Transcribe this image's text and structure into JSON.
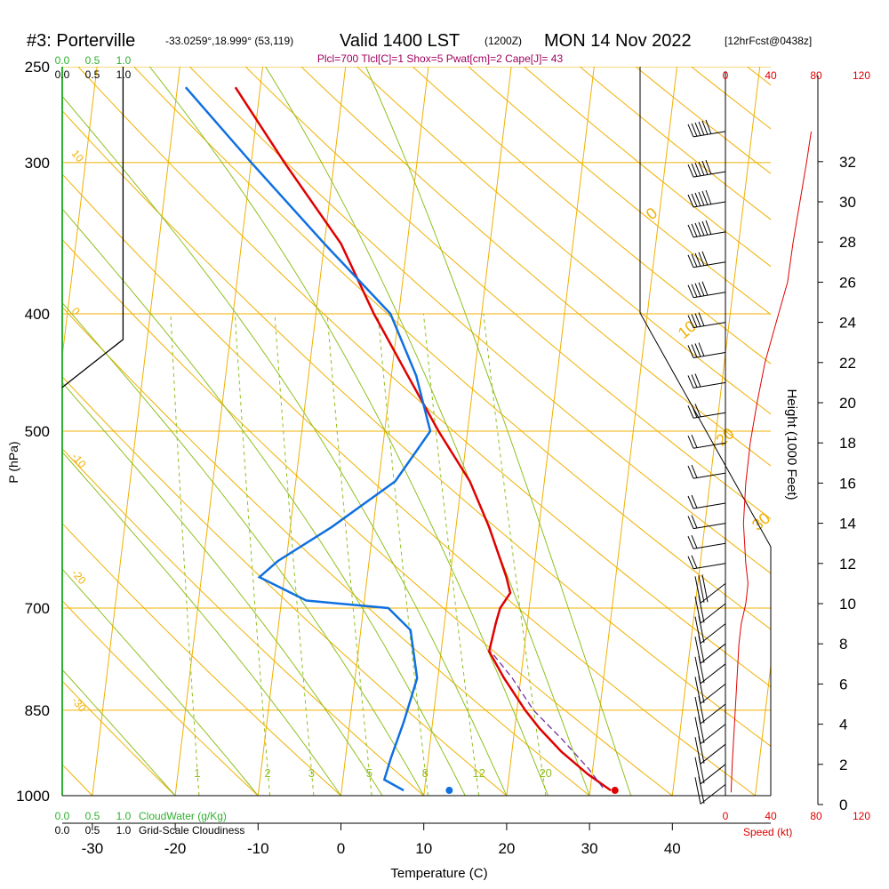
{
  "header": {
    "station": "#3: Porterville",
    "coords": "-33.0259°,18.999° (53,119)",
    "valid": "Valid 1400 LST",
    "utc": "(1200Z)",
    "date": "MON 14 Nov 2022",
    "fcst": "[12hrFcst@0438z]",
    "indices": "Plcl=700 Tlcl[C]=1 Shox=5 Pwat[cm]=2 Cape[J]= 43"
  },
  "labels": {
    "p_axis": "P (hPa)",
    "x_axis": "Temperature (C)",
    "height_axis": "Height (1000 Feet)",
    "cloudwater": "CloudWater (g/Kg)",
    "cloudiness": "Grid-Scale Cloudiness",
    "speed": "Speed (kt)"
  },
  "colors": {
    "isotherm": "#f0b000",
    "dry_adiabat": "#f0b000",
    "moist_adiabat": "#90c020",
    "mixing_ratio": "#90c020",
    "temperature": "#e00000",
    "dewpoint": "#1070e0",
    "parcel": "#7030a0",
    "cloudwater": "#30b030",
    "speed": "#e00000"
  },
  "chart_data": {
    "type": "line",
    "title": "",
    "pressure_ticks": [
      "250",
      "300",
      "400",
      "500",
      "700",
      "850",
      "1000"
    ],
    "pressure_values": [
      250,
      300,
      400,
      500,
      700,
      850,
      1000
    ],
    "temp_ticks": [
      "-30",
      "-20",
      "-10",
      "0",
      "10",
      "20",
      "30",
      "40"
    ],
    "temp_values": [
      -30,
      -20,
      -10,
      0,
      10,
      20,
      30,
      40
    ],
    "xlim": [
      -33,
      46
    ],
    "ylim": [
      1000,
      250
    ],
    "height_ticks": [
      "0",
      "2",
      "4",
      "6",
      "8",
      "10",
      "12",
      "14",
      "16",
      "18",
      "20",
      "22",
      "24",
      "26",
      "28",
      "30",
      "32"
    ],
    "speed_ticks_top": [
      "0",
      "40",
      "80",
      "120"
    ],
    "speed_ticks_bottom": [
      "0",
      "40",
      "80",
      "120"
    ],
    "cloud_ticks_top_green": [
      "0.0",
      "0.5",
      "1.0"
    ],
    "cloud_ticks_top_black": [
      "0.0",
      "0.5",
      "1.0"
    ],
    "cloud_ticks_bottom_green": [
      "0.0",
      "0.5",
      "1.0"
    ],
    "cloud_ticks_bottom_black": [
      "0.0",
      "0.5",
      "1.0"
    ],
    "dry_adiabat_labels": [
      {
        "text": "10",
        "side": "left",
        "p": 295
      },
      {
        "text": "0",
        "side": "left",
        "p": 398
      },
      {
        "text": "-10",
        "side": "left",
        "p": 525
      },
      {
        "text": "-20",
        "side": "left",
        "p": 655
      },
      {
        "text": "-30",
        "side": "left",
        "p": 835
      },
      {
        "text": "0",
        "side": "right",
        "p": 335
      },
      {
        "text": "10",
        "side": "right",
        "p": 420
      },
      {
        "text": "20",
        "side": "right",
        "p": 515
      },
      {
        "text": "30",
        "side": "right",
        "p": 605
      }
    ],
    "mixing_ratio_labels": [
      "1",
      "2",
      "3",
      "5",
      "8",
      "12",
      "20"
    ],
    "mixing_ratio_values": [
      1,
      2,
      3,
      5,
      8,
      12,
      20
    ],
    "temperature_profile": [
      {
        "p": 990,
        "t": 32.5
      },
      {
        "p": 960,
        "t": 29.5
      },
      {
        "p": 920,
        "t": 26
      },
      {
        "p": 880,
        "t": 23
      },
      {
        "p": 850,
        "t": 21
      },
      {
        "p": 800,
        "t": 18
      },
      {
        "p": 760,
        "t": 15.8
      },
      {
        "p": 720,
        "t": 16.2
      },
      {
        "p": 700,
        "t": 16.5
      },
      {
        "p": 680,
        "t": 17.5
      },
      {
        "p": 660,
        "t": 16.8
      },
      {
        "p": 600,
        "t": 14
      },
      {
        "p": 550,
        "t": 11
      },
      {
        "p": 500,
        "t": 6.5
      },
      {
        "p": 450,
        "t": 2
      },
      {
        "p": 400,
        "t": -3
      },
      {
        "p": 350,
        "t": -8
      },
      {
        "p": 300,
        "t": -16
      },
      {
        "p": 260,
        "t": -23
      }
    ],
    "dewpoint_profile": [
      {
        "p": 990,
        "t": 7.5
      },
      {
        "p": 970,
        "t": 5
      },
      {
        "p": 930,
        "t": 5.5
      },
      {
        "p": 870,
        "t": 6.5
      },
      {
        "p": 800,
        "t": 7.5
      },
      {
        "p": 730,
        "t": 6
      },
      {
        "p": 700,
        "t": 3
      },
      {
        "p": 690,
        "t": -7
      },
      {
        "p": 660,
        "t": -13
      },
      {
        "p": 640,
        "t": -11
      },
      {
        "p": 600,
        "t": -5
      },
      {
        "p": 550,
        "t": 2
      },
      {
        "p": 500,
        "t": 5.5
      },
      {
        "p": 450,
        "t": 3
      },
      {
        "p": 400,
        "t": -1
      },
      {
        "p": 350,
        "t": -10
      },
      {
        "p": 300,
        "t": -20
      },
      {
        "p": 260,
        "t": -29
      }
    ],
    "parcel_profile": [
      {
        "p": 985,
        "t": 31.5
      },
      {
        "p": 950,
        "t": 29.5
      },
      {
        "p": 900,
        "t": 26
      },
      {
        "p": 850,
        "t": 22
      },
      {
        "p": 800,
        "t": 19
      },
      {
        "p": 760,
        "t": 16
      }
    ],
    "surface_temp": {
      "p": 990,
      "t": 33
    },
    "surface_dewpoint": {
      "p": 990,
      "t": 13
    },
    "speed_profile_kt": [
      {
        "h": 0.6,
        "s": 5
      },
      {
        "h": 2,
        "s": 6
      },
      {
        "h": 4,
        "s": 8
      },
      {
        "h": 6,
        "s": 10
      },
      {
        "h": 8,
        "s": 12
      },
      {
        "h": 9,
        "s": 14
      },
      {
        "h": 10,
        "s": 18
      },
      {
        "h": 11,
        "s": 20
      },
      {
        "h": 12,
        "s": 18
      },
      {
        "h": 14,
        "s": 16
      },
      {
        "h": 16,
        "s": 18
      },
      {
        "h": 18,
        "s": 22
      },
      {
        "h": 20,
        "s": 28
      },
      {
        "h": 22,
        "s": 35
      },
      {
        "h": 24,
        "s": 45
      },
      {
        "h": 26,
        "s": 55
      },
      {
        "h": 28,
        "s": 60
      },
      {
        "h": 30,
        "s": 66
      },
      {
        "h": 32,
        "s": 72
      },
      {
        "h": 33.5,
        "s": 76
      }
    ],
    "wind_barbs_height_kft": [
      33.5,
      31.5,
      30,
      28.5,
      27,
      25.5,
      24,
      22.5,
      21,
      19.5,
      18,
      16.5,
      15,
      14,
      13,
      12,
      11,
      10,
      9,
      8,
      7,
      6,
      5,
      4,
      3,
      2,
      1
    ],
    "wind_barbs_speed_kt": [
      55,
      55,
      55,
      55,
      50,
      45,
      40,
      35,
      30,
      25,
      20,
      15,
      15,
      15,
      15,
      20,
      25,
      20,
      15,
      15,
      15,
      15,
      15,
      15,
      15,
      15,
      15
    ],
    "cloud_fraction": [
      {
        "p": 250,
        "c": 0.95
      },
      {
        "p": 420,
        "c": 0.95
      },
      {
        "p": 460,
        "c": 0.0
      }
    ]
  }
}
